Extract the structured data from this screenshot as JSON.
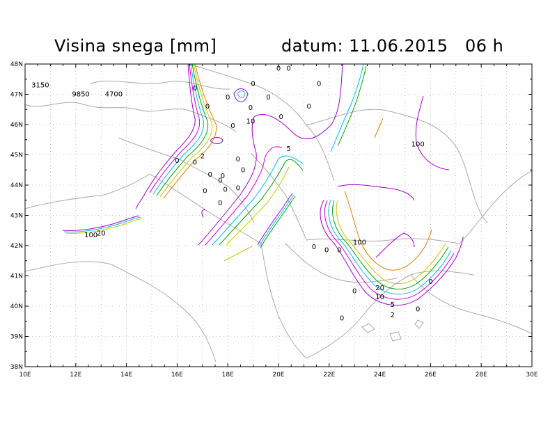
{
  "title": "Visina snega [mm]",
  "datum": "datum: 11.06.2015   06 h",
  "lat_labels": [
    "48N",
    "47N",
    "46N",
    "45N",
    "44N",
    "43N",
    "42N",
    "41N",
    "40N",
    "39N",
    "38N"
  ],
  "lon_labels": [
    "10E",
    "12E",
    "14E",
    "16E",
    "18E",
    "20E",
    "22E",
    "24E",
    "26E",
    "28E",
    "30E"
  ],
  "station_labels": [
    {
      "text": "3150",
      "lon": 10.6,
      "lat": 47.3
    },
    {
      "text": "9850",
      "lon": 12.2,
      "lat": 47.0
    },
    {
      "text": "4700",
      "lon": 13.5,
      "lat": 47.0
    },
    {
      "text": "0",
      "lon": 20.0,
      "lat": 47.85
    },
    {
      "text": "0",
      "lon": 20.4,
      "lat": 47.85
    },
    {
      "text": "0",
      "lon": 19.0,
      "lat": 47.35
    },
    {
      "text": "0",
      "lon": 21.6,
      "lat": 47.35
    },
    {
      "text": "0",
      "lon": 16.7,
      "lat": 47.2
    },
    {
      "text": "0",
      "lon": 18.0,
      "lat": 46.9
    },
    {
      "text": "0",
      "lon": 19.6,
      "lat": 46.9
    },
    {
      "text": "0",
      "lon": 17.2,
      "lat": 46.6
    },
    {
      "text": "0",
      "lon": 18.9,
      "lat": 46.55
    },
    {
      "text": "0",
      "lon": 21.2,
      "lat": 46.6
    },
    {
      "text": "0",
      "lon": 20.1,
      "lat": 46.25
    },
    {
      "text": "0",
      "lon": 18.2,
      "lat": 45.95
    },
    {
      "text": "0",
      "lon": 16.0,
      "lat": 44.8
    },
    {
      "text": "0",
      "lon": 16.7,
      "lat": 44.75
    },
    {
      "text": "0",
      "lon": 18.4,
      "lat": 44.85
    },
    {
      "text": "0",
      "lon": 18.6,
      "lat": 44.5
    },
    {
      "text": "0",
      "lon": 17.8,
      "lat": 44.3
    },
    {
      "text": "0",
      "lon": 17.3,
      "lat": 44.35
    },
    {
      "text": "0",
      "lon": 17.7,
      "lat": 44.15
    },
    {
      "text": "0",
      "lon": 17.9,
      "lat": 43.85
    },
    {
      "text": "0",
      "lon": 17.1,
      "lat": 43.8
    },
    {
      "text": "0",
      "lon": 18.4,
      "lat": 43.9
    },
    {
      "text": "0",
      "lon": 17.7,
      "lat": 43.4
    },
    {
      "text": "0",
      "lon": 21.4,
      "lat": 41.95
    },
    {
      "text": "0",
      "lon": 21.9,
      "lat": 41.85
    },
    {
      "text": "0",
      "lon": 22.4,
      "lat": 41.85
    },
    {
      "text": "0",
      "lon": 23.0,
      "lat": 40.5
    },
    {
      "text": "0",
      "lon": 22.5,
      "lat": 39.6
    },
    {
      "text": "0",
      "lon": 25.5,
      "lat": 39.9
    },
    {
      "text": "0",
      "lon": 26.0,
      "lat": 40.8
    },
    {
      "text": "100",
      "lon": 25.5,
      "lat": 45.35
    },
    {
      "text": "100",
      "lon": 23.2,
      "lat": 42.1
    }
  ],
  "contour_labels": [
    {
      "text": "10",
      "lon": 18.9,
      "lat": 46.1,
      "color": "#00bfff"
    },
    {
      "text": "5",
      "lon": 20.4,
      "lat": 45.2,
      "color": "#a000c8"
    },
    {
      "text": "2",
      "lon": 17.0,
      "lat": 44.95,
      "color": "#a000c8"
    },
    {
      "text": "100",
      "lon": 12.6,
      "lat": 42.35,
      "color": "#a000c8"
    },
    {
      "text": "20",
      "lon": 13.0,
      "lat": 42.4,
      "color": "#000000"
    },
    {
      "text": "20",
      "lon": 24.0,
      "lat": 40.6,
      "color": "#00a000"
    },
    {
      "text": "10",
      "lon": 24.0,
      "lat": 40.3,
      "color": "#00bfff"
    },
    {
      "text": "5",
      "lon": 24.5,
      "lat": 40.05,
      "color": "#a000c8"
    },
    {
      "text": "2",
      "lon": 24.5,
      "lat": 39.7,
      "color": "#a000c8"
    }
  ],
  "colors": {
    "grid": "#888888",
    "border": "#a9a9a9",
    "c2": "#a000c8",
    "c5": "#d200d2",
    "c10": "#00bfff",
    "c20": "#00a000",
    "c50": "#c8c800",
    "c100": "#e08000"
  }
}
